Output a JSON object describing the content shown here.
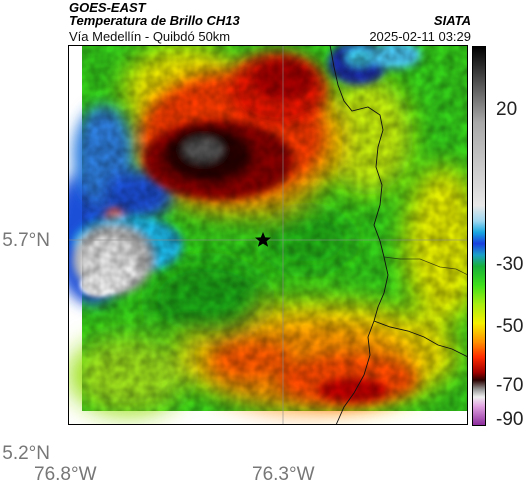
{
  "header": {
    "satellite": "GOES-EAST",
    "product": "Temperatura de Brillo CH13",
    "organization": "SIATA",
    "area": "Vía Medellín - Quibdó 50km",
    "timestamp": "2025-02-11 03:29"
  },
  "map": {
    "lat_labels": [
      "5.7°N",
      "5.2°N"
    ],
    "lon_labels": [
      "76.8°W",
      "76.3°W"
    ],
    "marker_icon": "star-icon"
  },
  "colorbar": {
    "tick_labels": [
      "20",
      "-30",
      "-50",
      "-70",
      "-90"
    ]
  }
}
